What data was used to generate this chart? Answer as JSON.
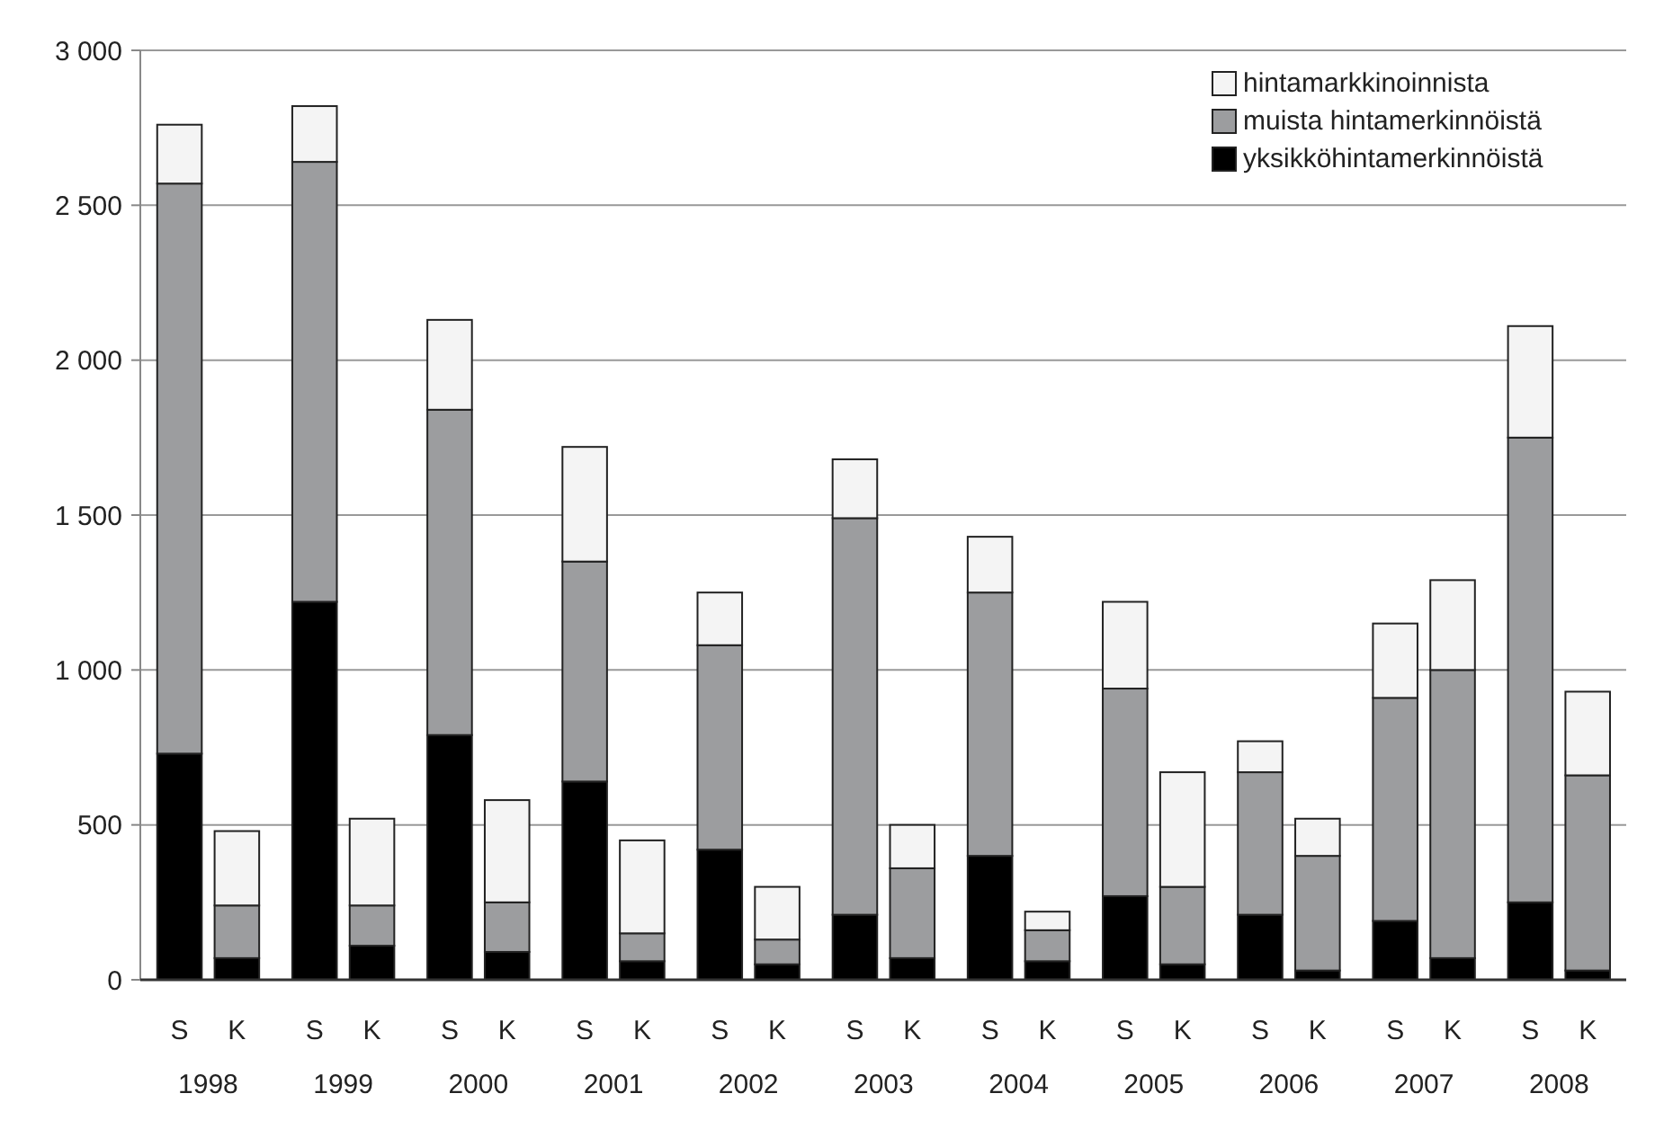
{
  "chart_data": {
    "type": "bar",
    "stacked": true,
    "categories": [
      "S",
      "K",
      "S",
      "K",
      "S",
      "K",
      "S",
      "K",
      "S",
      "K",
      "S",
      "K",
      "S",
      "K",
      "S",
      "K",
      "S",
      "K",
      "S",
      "K",
      "S",
      "K"
    ],
    "annotations": [
      "1998",
      "1999",
      "2000",
      "2001",
      "2002",
      "2003",
      "2004",
      "2005",
      "2006",
      "2007",
      "2008"
    ],
    "series": [
      {
        "name": "yksikköhintamerkinnöistä",
        "color": "#000000",
        "values": [
          730,
          70,
          1220,
          110,
          790,
          90,
          640,
          60,
          420,
          50,
          210,
          70,
          400,
          60,
          270,
          50,
          210,
          30,
          190,
          70,
          250,
          30
        ]
      },
      {
        "name": "muista hintamerkinnöistä",
        "color": "#9c9d9f",
        "values": [
          1840,
          170,
          1420,
          130,
          1050,
          160,
          710,
          90,
          660,
          80,
          1280,
          290,
          850,
          100,
          670,
          250,
          460,
          370,
          720,
          930,
          1500,
          630
        ]
      },
      {
        "name": "hintamarkkinoinnista",
        "color": "#f4f4f4",
        "values": [
          190,
          240,
          180,
          280,
          290,
          330,
          370,
          300,
          170,
          170,
          190,
          140,
          180,
          60,
          280,
          370,
          100,
          120,
          240,
          290,
          360,
          270
        ]
      }
    ],
    "ylim": [
      0,
      3000
    ],
    "yticks": [
      {
        "value": 0,
        "label": "0"
      },
      {
        "value": 500,
        "label": "500"
      },
      {
        "value": 1000,
        "label": "1 000"
      },
      {
        "value": 1500,
        "label": "1 500"
      },
      {
        "value": 2000,
        "label": "2 000"
      },
      {
        "value": 2500,
        "label": "2 500"
      },
      {
        "value": 3000,
        "label": "3 000"
      }
    ],
    "grid": "y",
    "legend": "top right"
  }
}
